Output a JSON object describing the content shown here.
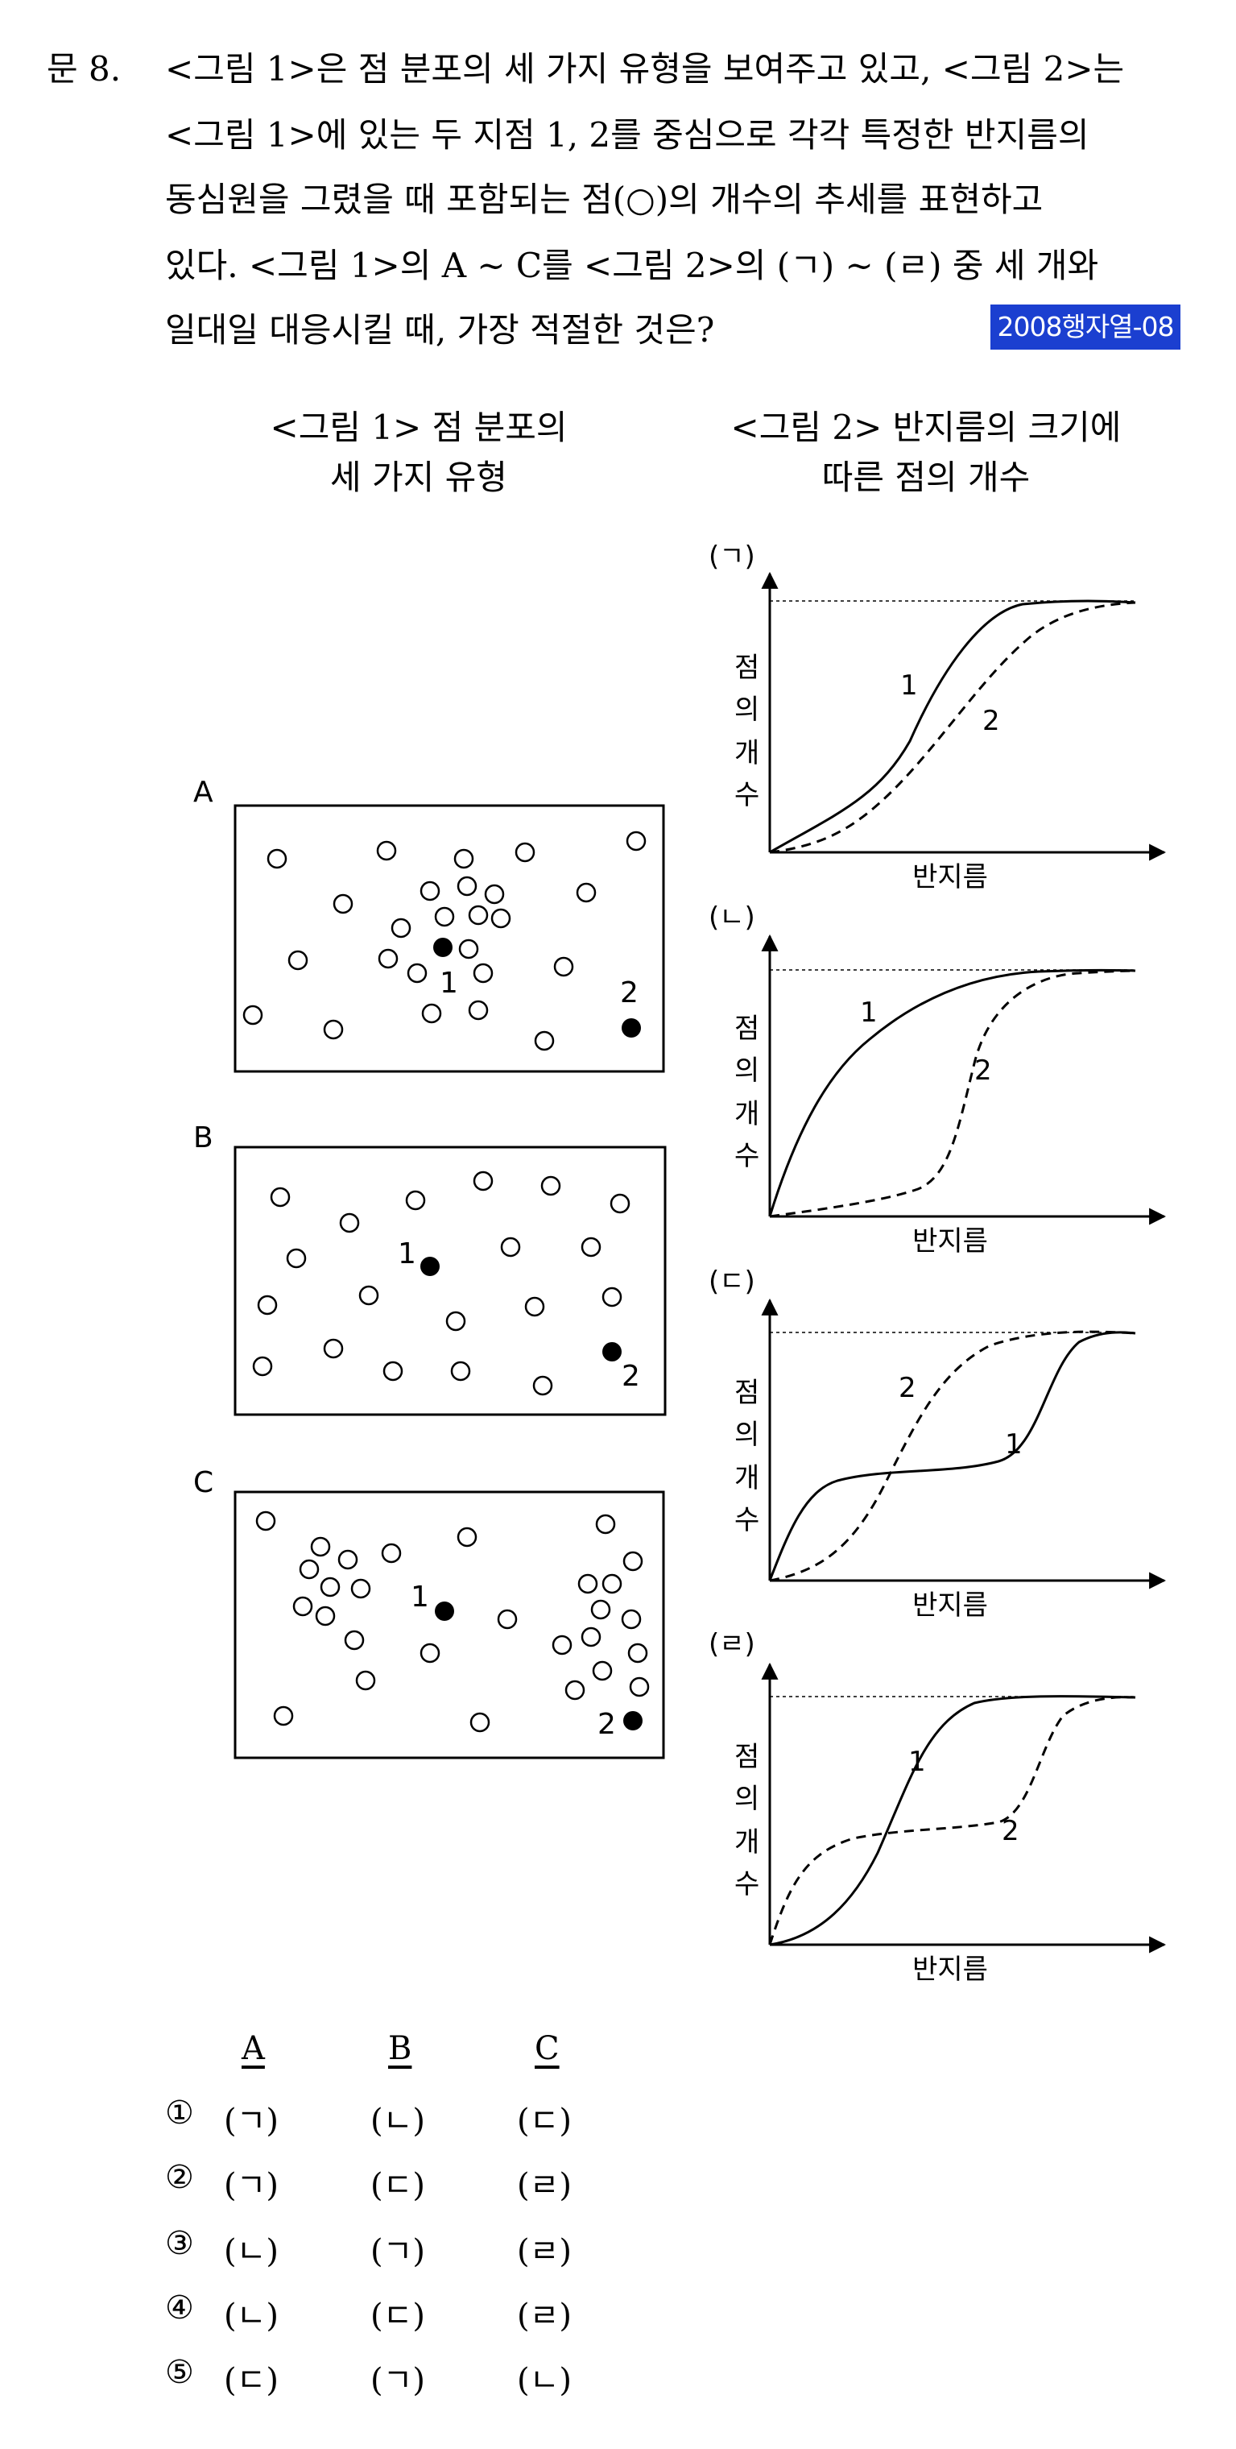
{
  "question": {
    "number": "문  8.",
    "lines": [
      "<그림 1>은 점 분포의 세 가지 유형을 보여주고 있고, <그림 2>는",
      "<그림 1>에 있는 두 지점 1, 2를 중심으로 각각 특정한 반지름의",
      "동심원을 그렸을 때 포함되는 점(○)의 개수의 추세를 표현하고",
      "있다. <그림 1>의 A ~ C를 <그림 2>의 (ㄱ) ~ (ㄹ) 중 세 개와",
      "일대일 대응시킬 때, 가장 적절한 것은?"
    ],
    "source_tag": "2008행자열-08"
  },
  "figure1": {
    "caption_line1": "<그림 1> 점 분포의",
    "caption_line2": "세 가지 유형",
    "panels": [
      {
        "label": "A",
        "point1_label": "1",
        "point2_label": "2"
      },
      {
        "label": "B",
        "point1_label": "1",
        "point2_label": "2"
      },
      {
        "label": "C",
        "point1_label": "1",
        "point2_label": "2"
      }
    ]
  },
  "figure2": {
    "caption_line1": "<그림 2> 반지름의 크기에",
    "caption_line2": "따른 점의 개수",
    "graphs": [
      {
        "label": "(ㄱ)",
        "ylabel": [
          "점",
          "의",
          "개",
          "수"
        ],
        "xlabel": "반지름",
        "curve1_label": "1",
        "curve2_label": "2"
      },
      {
        "label": "(ㄴ)",
        "ylabel": [
          "점",
          "의",
          "개",
          "수"
        ],
        "xlabel": "반지름",
        "curve1_label": "1",
        "curve2_label": "2"
      },
      {
        "label": "(ㄷ)",
        "ylabel": [
          "점",
          "의",
          "개",
          "수"
        ],
        "xlabel": "반지름",
        "curve1_label": "1",
        "curve2_label": "2"
      },
      {
        "label": "(ㄹ)",
        "ylabel": [
          "점",
          "의",
          "개",
          "수"
        ],
        "xlabel": "반지름",
        "curve1_label": "1",
        "curve2_label": "2"
      }
    ]
  },
  "answers": {
    "headers": [
      "A",
      "B",
      "C"
    ],
    "options": [
      {
        "num": "①",
        "a": "(ㄱ)",
        "b": "(ㄴ)",
        "c": "(ㄷ)"
      },
      {
        "num": "②",
        "a": "(ㄱ)",
        "b": "(ㄷ)",
        "c": "(ㄹ)"
      },
      {
        "num": "③",
        "a": "(ㄴ)",
        "b": "(ㄱ)",
        "c": "(ㄹ)"
      },
      {
        "num": "④",
        "a": "(ㄴ)",
        "b": "(ㄷ)",
        "c": "(ㄹ)"
      },
      {
        "num": "⑤",
        "a": "(ㄷ)",
        "b": "(ㄱ)",
        "c": "(ㄴ)"
      }
    ]
  }
}
